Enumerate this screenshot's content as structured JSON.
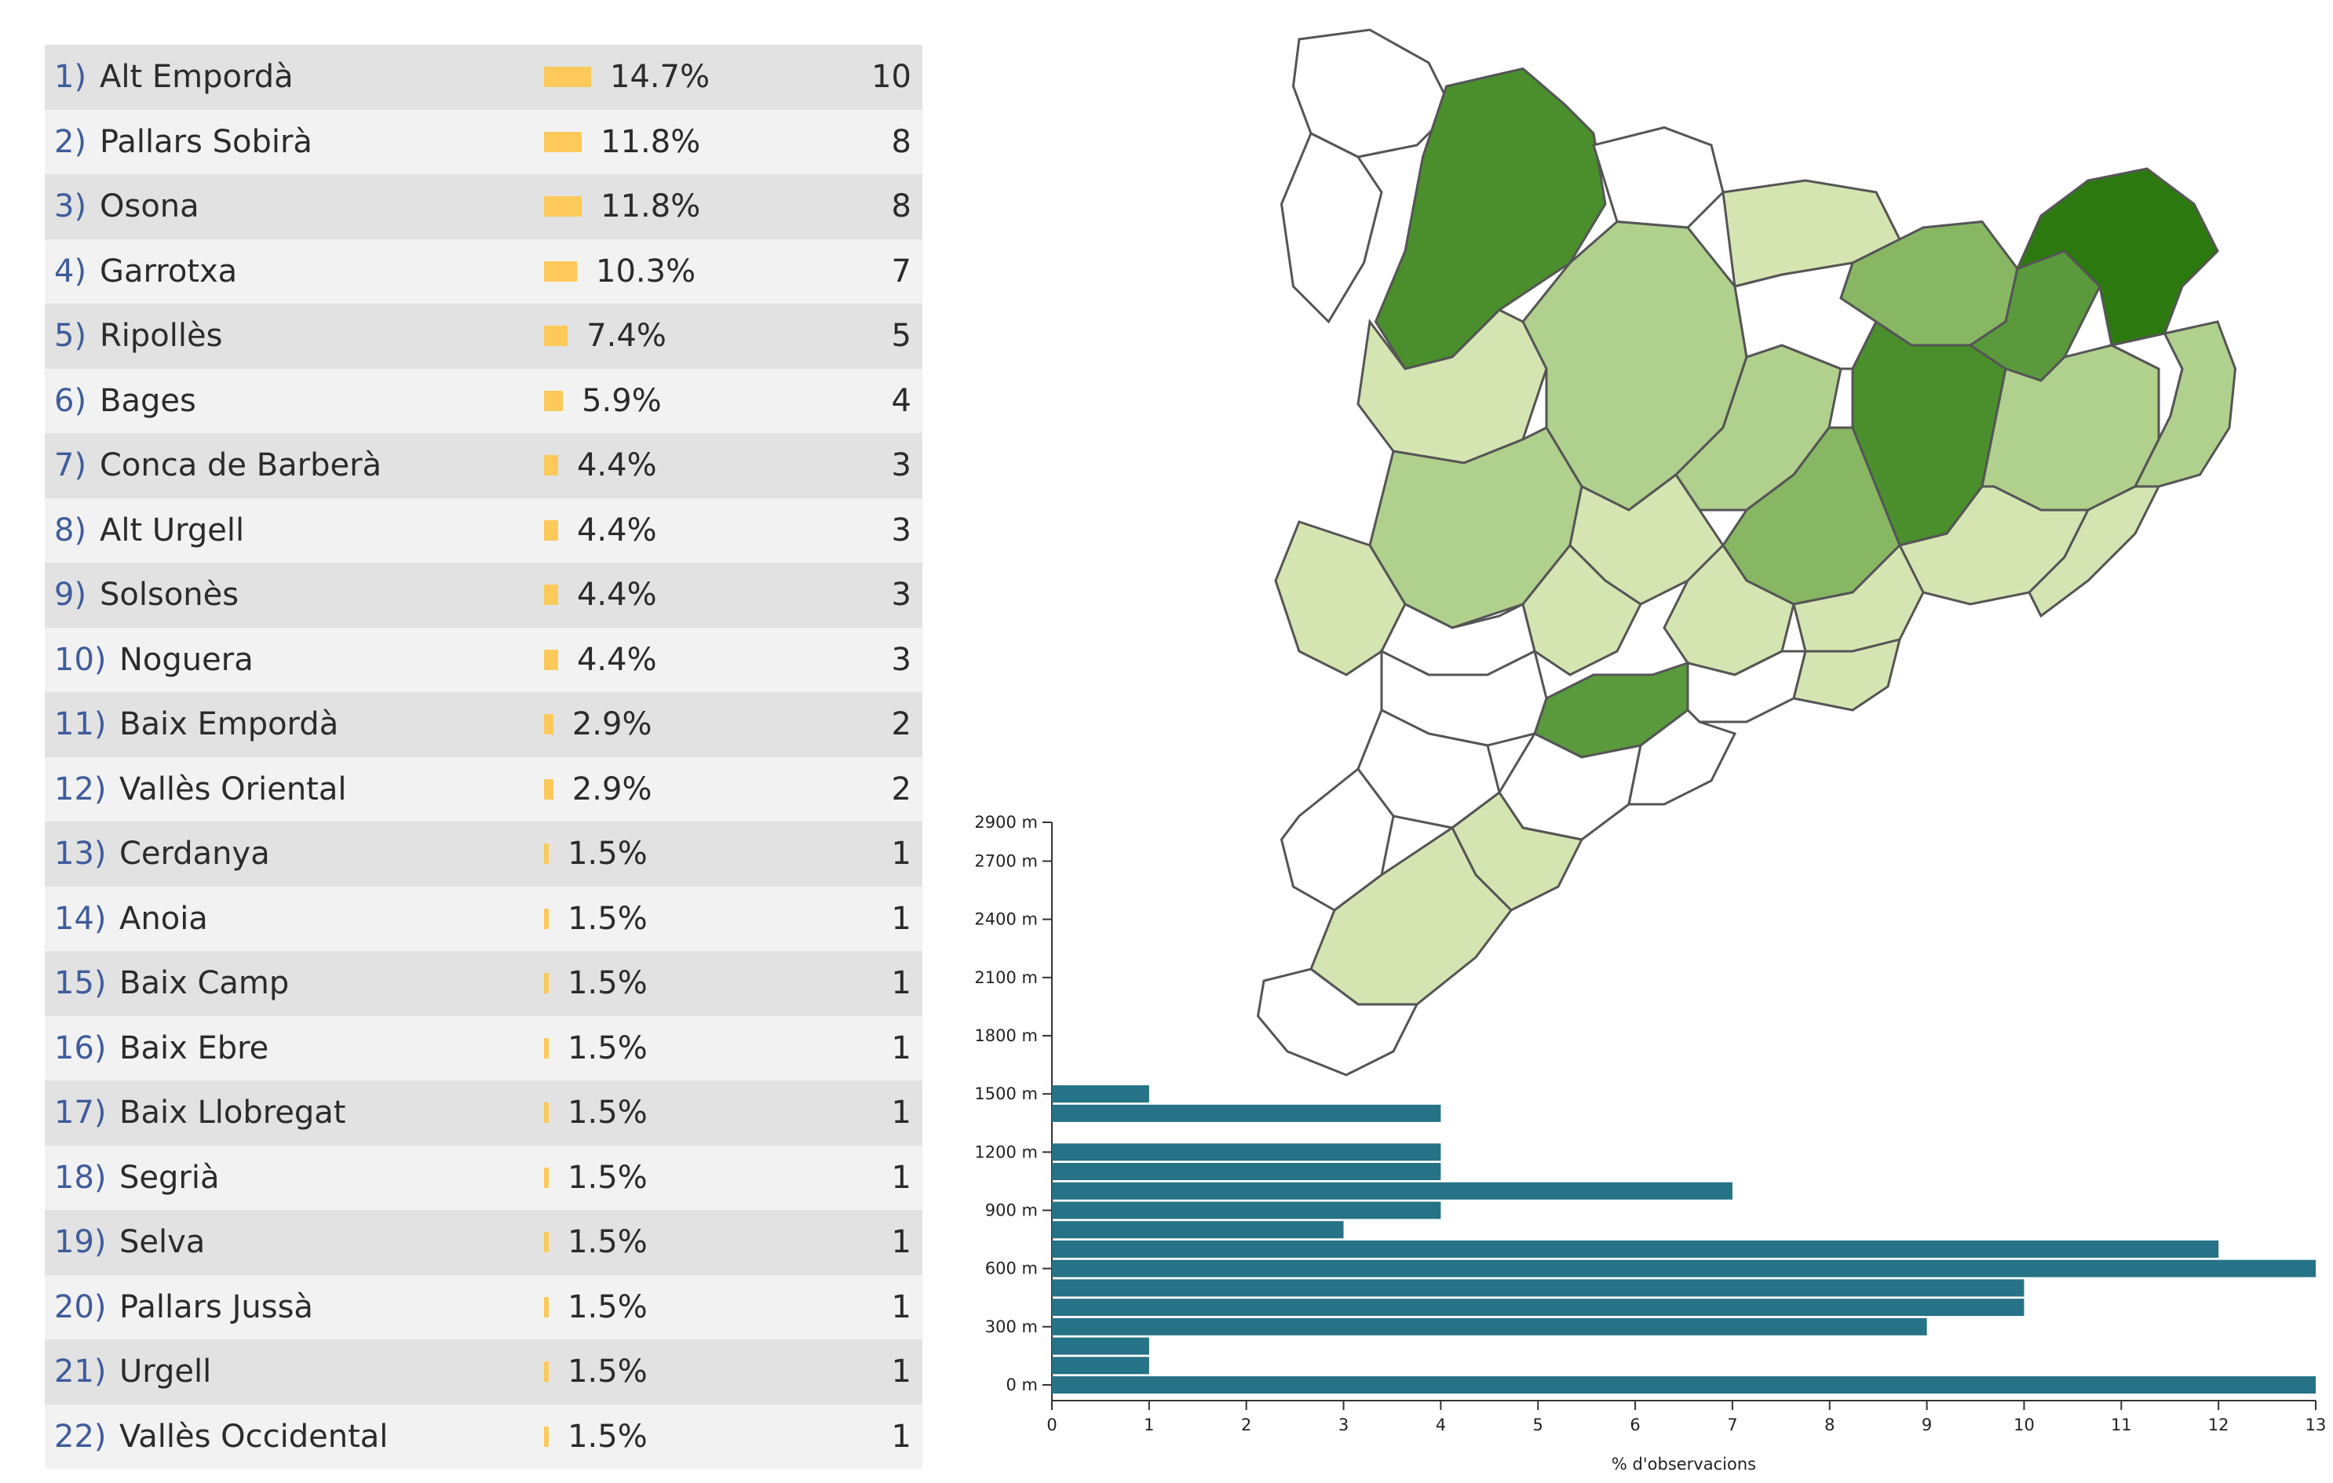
{
  "ranking": {
    "rows": [
      {
        "rank": "1)",
        "name": "Alt Empordà",
        "pct": "14.7%",
        "count": "10",
        "share": 14.7
      },
      {
        "rank": "2)",
        "name": "Pallars Sobirà",
        "pct": "11.8%",
        "count": "8",
        "share": 11.8
      },
      {
        "rank": "3)",
        "name": "Osona",
        "pct": "11.8%",
        "count": "8",
        "share": 11.8
      },
      {
        "rank": "4)",
        "name": "Garrotxa",
        "pct": "10.3%",
        "count": "7",
        "share": 10.3
      },
      {
        "rank": "5)",
        "name": "Ripollès",
        "pct": "7.4%",
        "count": "5",
        "share": 7.4
      },
      {
        "rank": "6)",
        "name": "Bages",
        "pct": "5.9%",
        "count": "4",
        "share": 5.9
      },
      {
        "rank": "7)",
        "name": "Conca de Barberà",
        "pct": "4.4%",
        "count": "3",
        "share": 4.4
      },
      {
        "rank": "8)",
        "name": "Alt Urgell",
        "pct": "4.4%",
        "count": "3",
        "share": 4.4
      },
      {
        "rank": "9)",
        "name": "Solsonès",
        "pct": "4.4%",
        "count": "3",
        "share": 4.4
      },
      {
        "rank": "10)",
        "name": "Noguera",
        "pct": "4.4%",
        "count": "3",
        "share": 4.4
      },
      {
        "rank": "11)",
        "name": "Baix Empordà",
        "pct": "2.9%",
        "count": "2",
        "share": 2.9
      },
      {
        "rank": "12)",
        "name": "Vallès Oriental",
        "pct": "2.9%",
        "count": "2",
        "share": 2.9
      },
      {
        "rank": "13)",
        "name": "Cerdanya",
        "pct": "1.5%",
        "count": "1",
        "share": 1.5
      },
      {
        "rank": "14)",
        "name": "Anoia",
        "pct": "1.5%",
        "count": "1",
        "share": 1.5
      },
      {
        "rank": "15)",
        "name": "Baix Camp",
        "pct": "1.5%",
        "count": "1",
        "share": 1.5
      },
      {
        "rank": "16)",
        "name": "Baix Ebre",
        "pct": "1.5%",
        "count": "1",
        "share": 1.5
      },
      {
        "rank": "17)",
        "name": "Baix Llobregat",
        "pct": "1.5%",
        "count": "1",
        "share": 1.5
      },
      {
        "rank": "18)",
        "name": "Segrià",
        "pct": "1.5%",
        "count": "1",
        "share": 1.5
      },
      {
        "rank": "19)",
        "name": "Selva",
        "pct": "1.5%",
        "count": "1",
        "share": 1.5
      },
      {
        "rank": "20)",
        "name": "Pallars Jussà",
        "pct": "1.5%",
        "count": "1",
        "share": 1.5
      },
      {
        "rank": "21)",
        "name": "Urgell",
        "pct": "1.5%",
        "count": "1",
        "share": 1.5
      },
      {
        "rank": "22)",
        "name": "Vallès Occidental",
        "pct": "1.5%",
        "count": "1",
        "share": 1.5
      }
    ],
    "bar_color": "#fcc95a"
  },
  "map": {
    "palette": {
      "none": "#ffffff",
      "level1": "#d5e5b2",
      "level2": "#b0d08d",
      "level3": "#88b764",
      "level4": "#5a9a3c",
      "level5": "#4a8f2c",
      "level6": "#2c7a0f"
    }
  },
  "chart_data": {
    "type": "bar",
    "orientation": "horizontal",
    "xlabel": "% d'observacions",
    "xlim": [
      0,
      13
    ],
    "x_ticks": [
      "0",
      "1",
      "2",
      "3",
      "4",
      "5",
      "6",
      "7",
      "8",
      "9",
      "10",
      "11",
      "12",
      "13"
    ],
    "ylim": [
      0,
      2900
    ],
    "y_ticks": [
      {
        "value": 0,
        "label": "0 m"
      },
      {
        "value": 300,
        "label": "300 m"
      },
      {
        "value": 600,
        "label": "600 m"
      },
      {
        "value": 900,
        "label": "900 m"
      },
      {
        "value": 1200,
        "label": "1200 m"
      },
      {
        "value": 1500,
        "label": "1500 m"
      },
      {
        "value": 1800,
        "label": "1800 m"
      },
      {
        "value": 2100,
        "label": "2100 m"
      },
      {
        "value": 2400,
        "label": "2400 m"
      },
      {
        "value": 2700,
        "label": "2700 m"
      },
      {
        "value": 2900,
        "label": "2900 m"
      }
    ],
    "bars": [
      {
        "elevation": 0,
        "value": 13
      },
      {
        "elevation": 100,
        "value": 1
      },
      {
        "elevation": 200,
        "value": 1
      },
      {
        "elevation": 300,
        "value": 9
      },
      {
        "elevation": 400,
        "value": 10
      },
      {
        "elevation": 500,
        "value": 10
      },
      {
        "elevation": 600,
        "value": 13
      },
      {
        "elevation": 700,
        "value": 12
      },
      {
        "elevation": 800,
        "value": 3
      },
      {
        "elevation": 900,
        "value": 4
      },
      {
        "elevation": 1000,
        "value": 7
      },
      {
        "elevation": 1100,
        "value": 4
      },
      {
        "elevation": 1200,
        "value": 4
      },
      {
        "elevation": 1300,
        "value": 0
      },
      {
        "elevation": 1400,
        "value": 4
      },
      {
        "elevation": 1500,
        "value": 1
      }
    ],
    "bar_color": "#267287"
  }
}
